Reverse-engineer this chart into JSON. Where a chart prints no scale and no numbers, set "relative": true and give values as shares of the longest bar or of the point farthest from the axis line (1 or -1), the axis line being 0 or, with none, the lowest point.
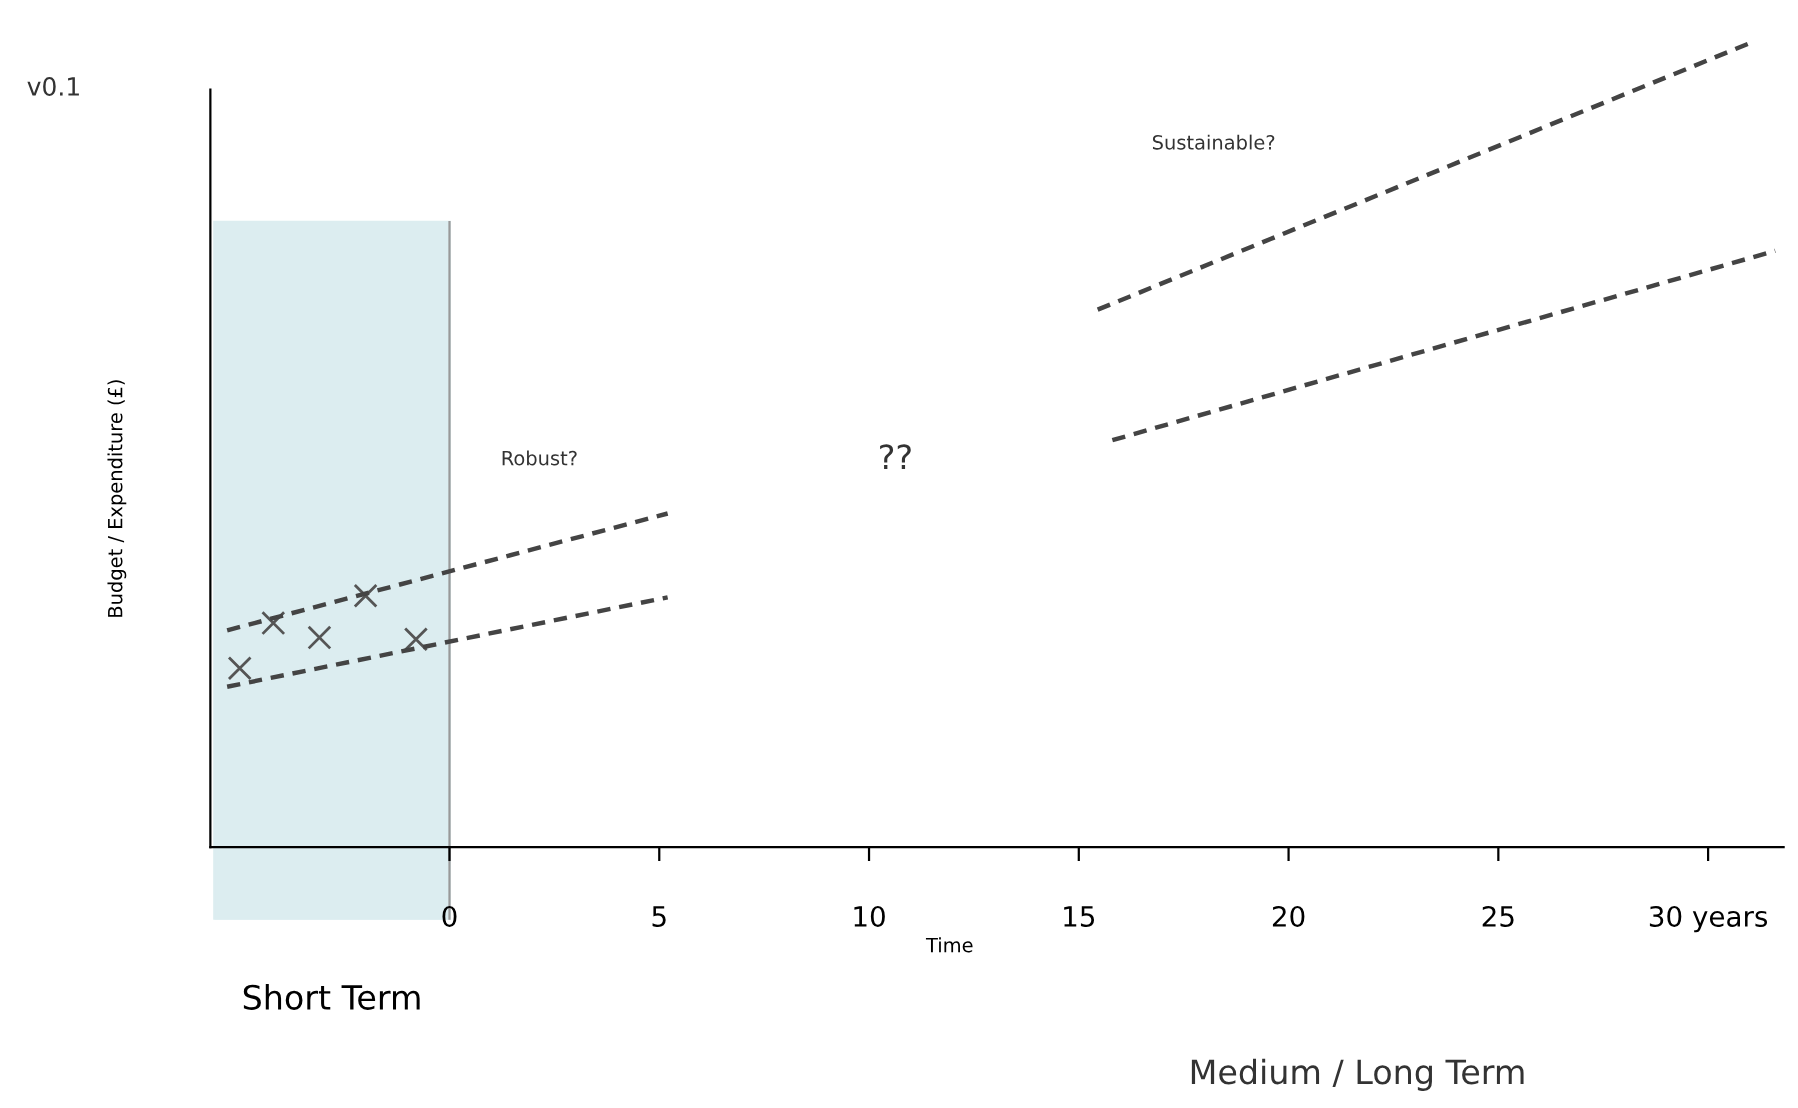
{
  "chart_data": {
    "type": "line",
    "relative": true,
    "xlabel": "Time",
    "ylabel": "Budget / Expenditure (£)",
    "xlim": [
      -5.7,
      31.8
    ],
    "xticks": [
      0,
      5,
      10,
      15,
      20,
      25,
      {
        "value": 30,
        "label": "30 years"
      }
    ],
    "legend": false,
    "line_style": "dashed",
    "series": [
      {
        "color": "#444444",
        "x": [
          -5.3,
          5.2
        ],
        "values": [
          0.199,
          0.31
        ]
      },
      {
        "color": "#444444",
        "x": [
          -5.3,
          5.2
        ],
        "values": [
          0.269,
          0.414
        ]
      },
      {
        "color": "#444444",
        "x": [
          15.45,
          31.1
        ],
        "values": [
          0.667,
          1
        ]
      },
      {
        "color": "#444444",
        "x": [
          15.8,
          31.6
        ],
        "values": [
          0.505,
          0.74
        ]
      },
      {
        "type": "scatter",
        "color": "#555555",
        "marker": "cross",
        "x": [
          -5.0,
          -4.2,
          -3.1,
          -2.0,
          -0.8
        ],
        "values": [
          0.222,
          0.278,
          0.26,
          0.312,
          0.258
        ]
      }
    ],
    "bands": [
      {
        "axis": "x",
        "from": -5.6,
        "to": 0,
        "label": "Short Term",
        "color": "#dcedf0"
      }
    ],
    "annotations": [
      "v0.1",
      "Sustainable?",
      "Robust?",
      "??",
      "Medium / Long Term"
    ]
  }
}
